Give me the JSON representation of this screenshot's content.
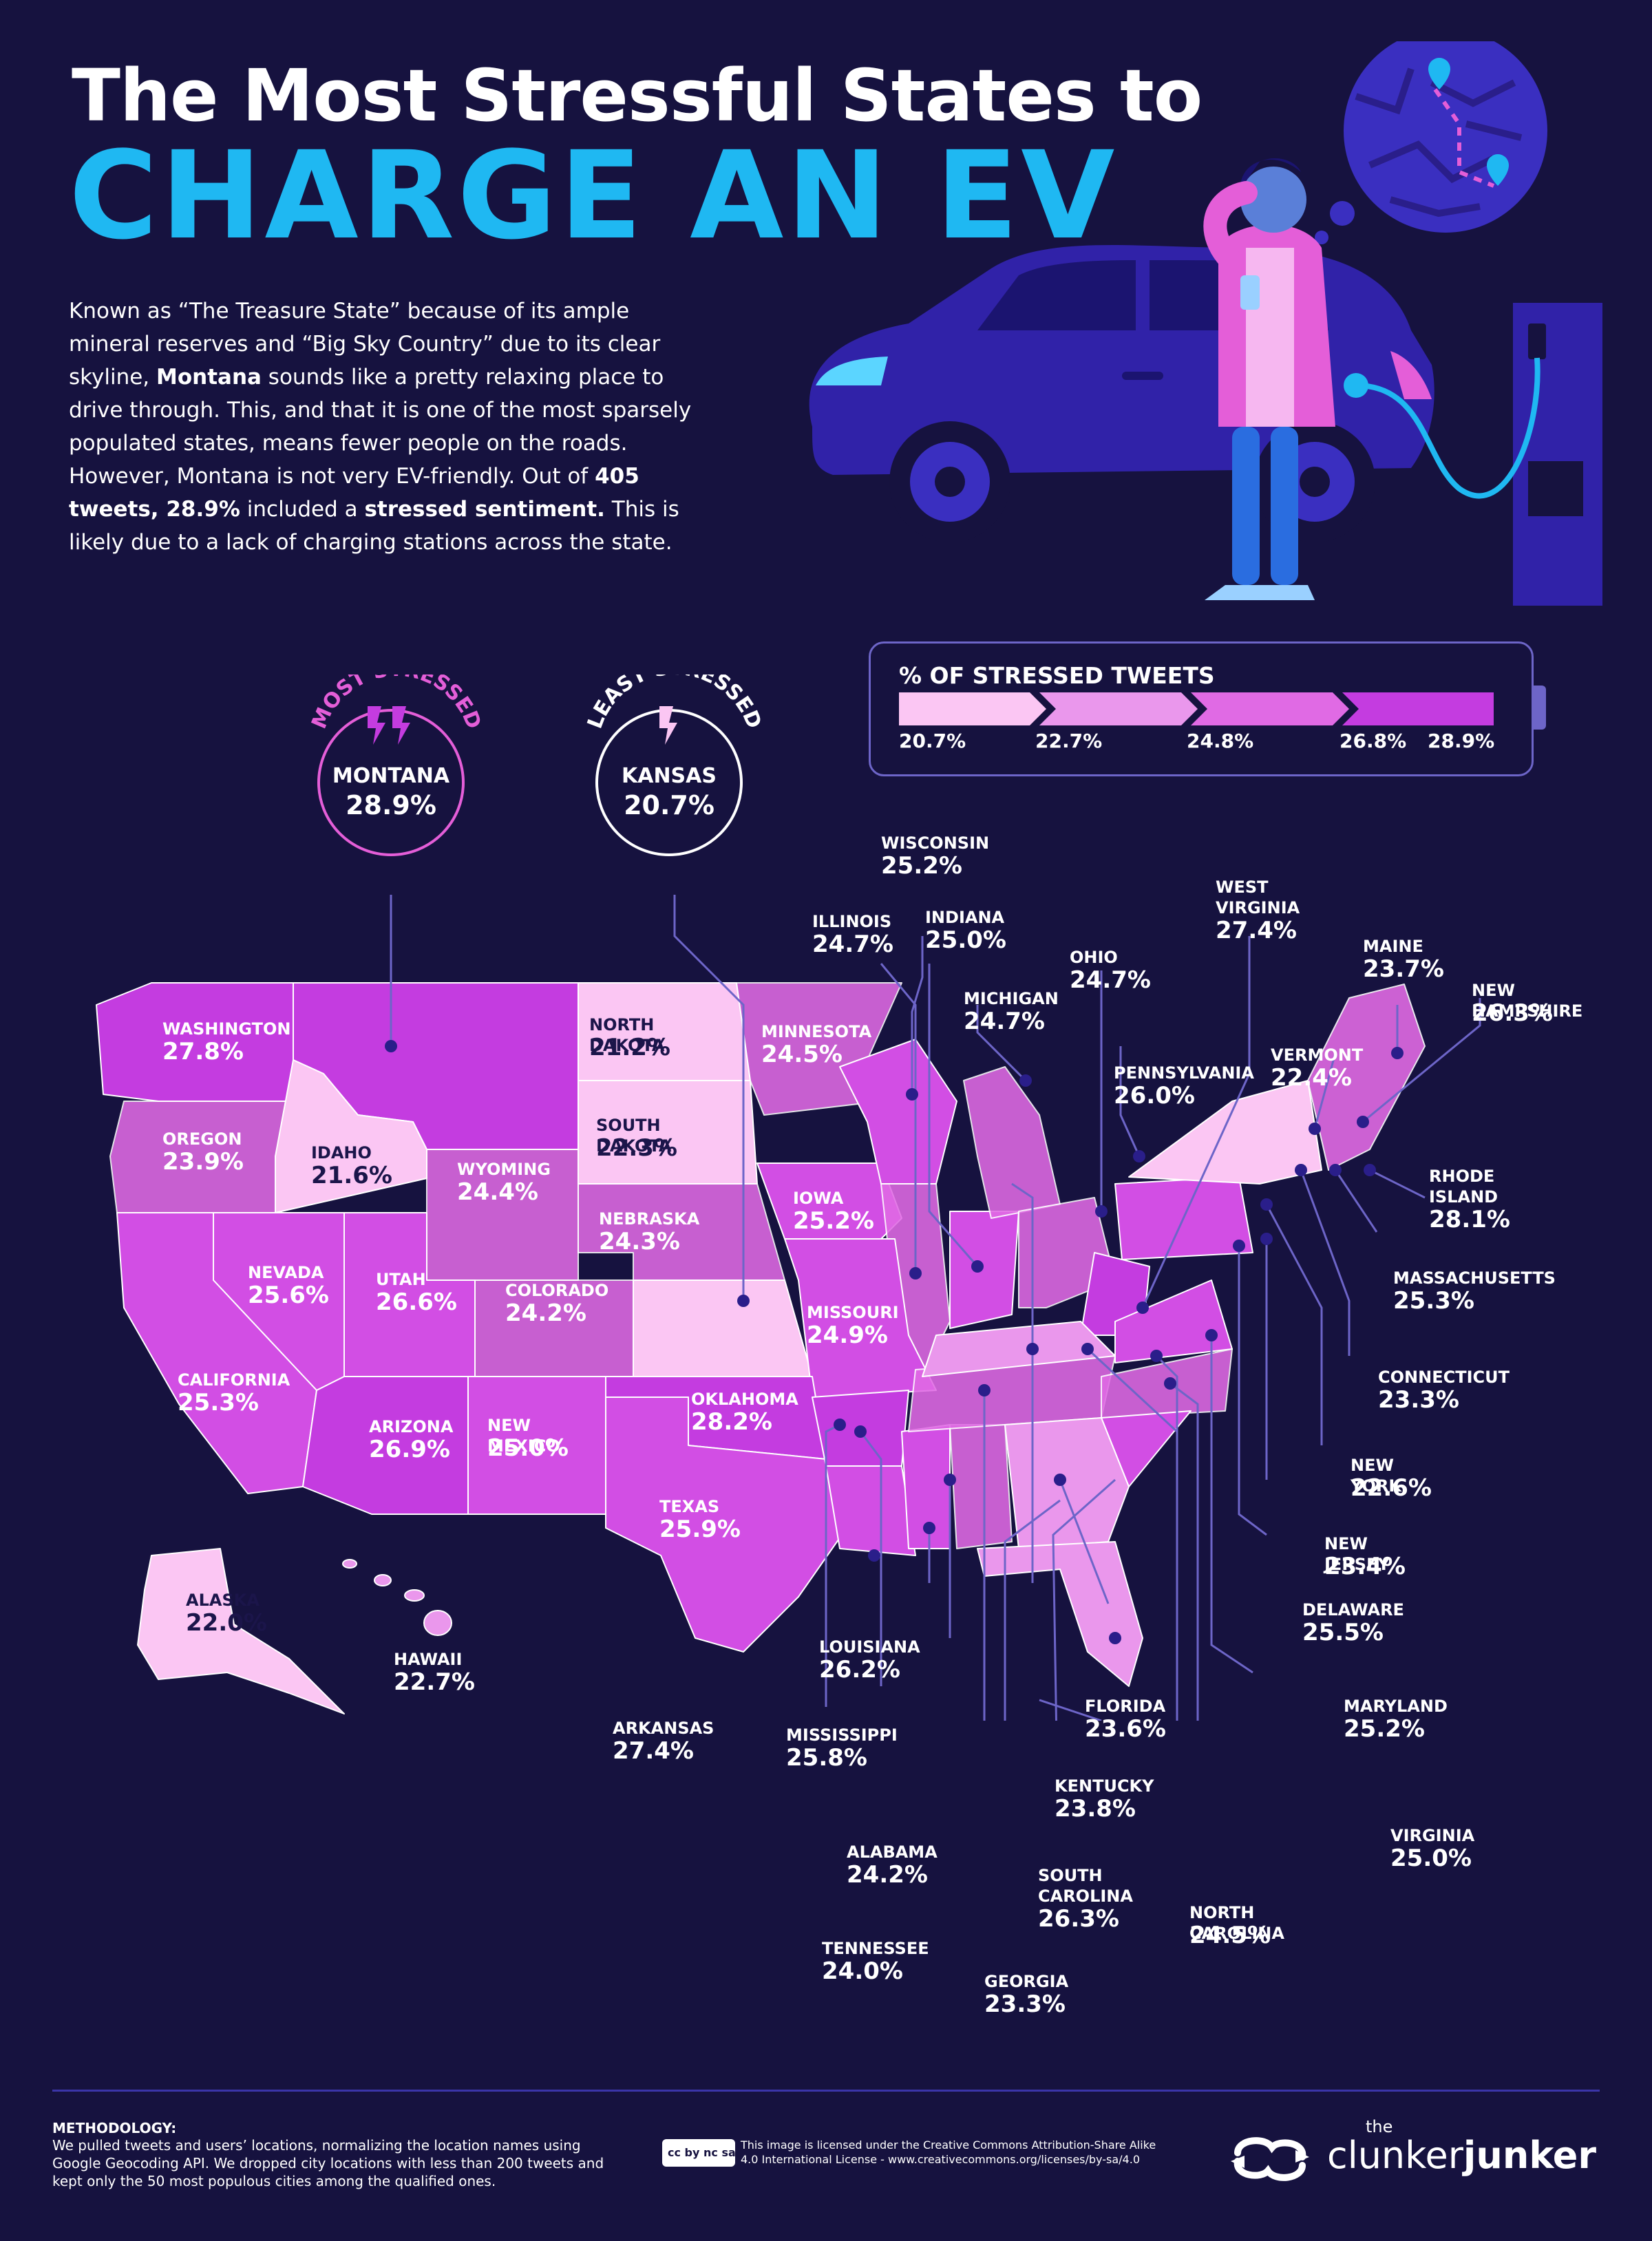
{
  "title": {
    "line1": "The Most Stressful States to",
    "line2": "CHARGE AN EV"
  },
  "intro": {
    "p1": "Known as “The Treasure State” because of its ample mineral reserves and “Big Sky Country” due to its clear skyline, ",
    "state": "Montana",
    "p2": " sounds like a pretty relaxing place to drive through. This, and that it is one of the most sparsely populated states, means fewer people on the roads. However, Montana is not very EV-friendly. Out of ",
    "tweets": "405 tweets, 28.9%",
    "p3": " included a ",
    "sentiment": "stressed sentiment.",
    "p4": " This is likely due to a lack of charging stations across the state."
  },
  "legend": {
    "title": "% OF STRESSED TWEETS",
    "ticks": [
      "20.7%",
      "22.7%",
      "24.8%",
      "26.8%",
      "28.9%"
    ],
    "colors": [
      "#fbc6f3",
      "#ea97ec",
      "#e06ae4",
      "#d24ee4",
      "#c43ce0"
    ]
  },
  "most_stressed": {
    "caption": "MOST STRESSED",
    "state": "MONTANA",
    "value": "28.9%"
  },
  "least_stressed": {
    "caption": "LEAST STRESSED",
    "state": "KANSAS",
    "value": "20.7%"
  },
  "states": {
    "washington": {
      "name": "WASHINGTON",
      "value": "27.8%"
    },
    "oregon": {
      "name": "OREGON",
      "value": "23.9%"
    },
    "idaho": {
      "name": "IDAHO",
      "value": "21.6%"
    },
    "wyoming": {
      "name": "WYOMING",
      "value": "24.4%"
    },
    "north_dakota": {
      "name": "NORTH DAKOTA",
      "value": "21.2%"
    },
    "south_dakota": {
      "name": "SOUTH DAKOTA",
      "value": "22.3%"
    },
    "nebraska": {
      "name": "NEBRASKA",
      "value": "24.3%"
    },
    "minnesota": {
      "name": "MINNESOTA",
      "value": "24.5%"
    },
    "iowa": {
      "name": "IOWA",
      "value": "25.2%"
    },
    "nevada": {
      "name": "NEVADA",
      "value": "25.6%"
    },
    "utah": {
      "name": "UTAH",
      "value": "26.6%"
    },
    "colorado": {
      "name": "COLORADO",
      "value": "24.2%"
    },
    "california": {
      "name": "CALIFORNIA",
      "value": "25.3%"
    },
    "arizona": {
      "name": "ARIZONA",
      "value": "26.9%"
    },
    "new_mexico": {
      "name": "NEW MEXICO",
      "value": "25.0%"
    },
    "oklahoma": {
      "name": "OKLAHOMA",
      "value": "28.2%"
    },
    "missouri": {
      "name": "MISSOURI",
      "value": "24.9%"
    },
    "texas": {
      "name": "TEXAS",
      "value": "25.9%"
    },
    "alaska": {
      "name": "ALASKA",
      "value": "22.0%"
    },
    "hawaii": {
      "name": "HAWAII",
      "value": "22.7%"
    },
    "wisconsin": {
      "name": "WISCONSIN",
      "value": "25.2%"
    },
    "illinois": {
      "name": "ILLINOIS",
      "value": "24.7%"
    },
    "indiana": {
      "name": "INDIANA",
      "value": "25.0%"
    },
    "michigan": {
      "name": "MICHIGAN",
      "value": "24.7%"
    },
    "ohio": {
      "name": "OHIO",
      "value": "24.7%"
    },
    "west_virginia": {
      "name": "WEST\nVIRGINIA",
      "value": "27.4%"
    },
    "pennsylvania": {
      "name": "PENNSYLVANIA",
      "value": "26.0%"
    },
    "vermont": {
      "name": "VERMONT",
      "value": "22.4%"
    },
    "maine": {
      "name": "MAINE",
      "value": "23.7%"
    },
    "new_hampshire": {
      "name": "NEW HAMPSHIRE",
      "value": "26.3%"
    },
    "rhode_island": {
      "name": "RHODE\nISLAND",
      "value": "28.1%"
    },
    "massachusetts": {
      "name": "MASSACHUSETTS",
      "value": "25.3%"
    },
    "connecticut": {
      "name": "CONNECTICUT",
      "value": "23.3%"
    },
    "new_york": {
      "name": "NEW YORK",
      "value": "22.6%"
    },
    "new_jersey": {
      "name": "NEW JERSEY",
      "value": "23.4%"
    },
    "delaware": {
      "name": "DELAWARE",
      "value": "25.5%"
    },
    "maryland": {
      "name": "MARYLAND",
      "value": "25.2%"
    },
    "virginia": {
      "name": "VIRGINIA",
      "value": "25.0%"
    },
    "north_carolina": {
      "name": "NORTH CAROLINA",
      "value": "24.5%"
    },
    "south_carolina": {
      "name": "SOUTH\nCAROLINA",
      "value": "26.3%"
    },
    "georgia": {
      "name": "GEORGIA",
      "value": "23.3%"
    },
    "tennessee": {
      "name": "TENNESSEE",
      "value": "24.0%"
    },
    "alabama": {
      "name": "ALABAMA",
      "value": "24.2%"
    },
    "mississippi": {
      "name": "MISSISSIPPI",
      "value": "25.8%"
    },
    "arkansas": {
      "name": "ARKANSAS",
      "value": "27.4%"
    },
    "louisiana": {
      "name": "LOUISIANA",
      "value": "26.2%"
    },
    "florida": {
      "name": "FLORIDA",
      "value": "23.6%"
    },
    "kentucky": {
      "name": "KENTUCKY",
      "value": "23.8%"
    }
  },
  "footer": {
    "methodology_title": "METHODOLOGY:",
    "methodology_text": "We pulled tweets and users’ locations, normalizing the location names using Google Geocoding API. We dropped city locations with less than 200 tweets and kept only the 50 most populous cities among the qualified ones.",
    "cc_badge": "cc by nc sa",
    "license": "This image is licensed under the Creative Commons  Attribution-Share Alike 4.0 International License - www.creativecommons.org/licenses/by-sa/4.0",
    "brand_the": "the",
    "brand_thin": "clunker",
    "brand_bold": "junker"
  }
}
